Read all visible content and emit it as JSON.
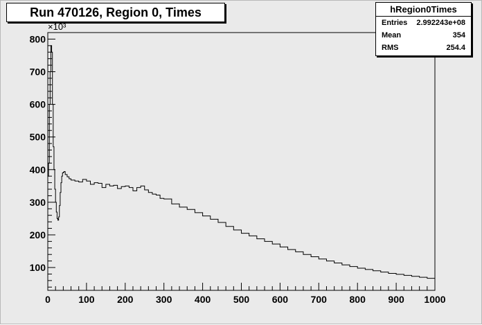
{
  "title": "Run 470126, Region 0, Times",
  "stats": {
    "name": "hRegion0Times",
    "rows": [
      {
        "label": "Entries",
        "value": "2.992243e+08"
      },
      {
        "label": "Mean",
        "value": "354"
      },
      {
        "label": "RMS",
        "value": "254.4"
      }
    ]
  },
  "chart_data": {
    "type": "line",
    "title": "Run 470126, Region 0, Times",
    "y_multiplier_label": "×10³",
    "xlim": [
      0,
      1000
    ],
    "ylim": [
      30,
      820
    ],
    "x_ticks": [
      0,
      100,
      200,
      300,
      400,
      500,
      600,
      700,
      800,
      900,
      1000
    ],
    "y_ticks": [
      100,
      200,
      300,
      400,
      500,
      600,
      700,
      800
    ],
    "series": [
      {
        "x": [
          0,
          2,
          4,
          6,
          8,
          10,
          12,
          14,
          16,
          18,
          20,
          22,
          24,
          26,
          28,
          30,
          32,
          34,
          36,
          38,
          40,
          42,
          45,
          50,
          55,
          60,
          70,
          80,
          90,
          100,
          110,
          120,
          130,
          140,
          150,
          160,
          170,
          180,
          190,
          200,
          210,
          220,
          230,
          240,
          250,
          260,
          270,
          280,
          290,
          300,
          320,
          340,
          360,
          380,
          400,
          420,
          440,
          460,
          480,
          500,
          520,
          540,
          560,
          580,
          600,
          620,
          640,
          660,
          680,
          700,
          720,
          740,
          760,
          780,
          800,
          820,
          840,
          860,
          880,
          900,
          920,
          940,
          960,
          980,
          1000
        ],
        "y": [
          380,
          420,
          600,
          700,
          780,
          760,
          600,
          470,
          400,
          340,
          300,
          270,
          250,
          245,
          255,
          290,
          330,
          360,
          380,
          390,
          392,
          394,
          385,
          378,
          372,
          368,
          365,
          362,
          370,
          365,
          355,
          360,
          358,
          345,
          355,
          350,
          352,
          342,
          348,
          350,
          345,
          335,
          345,
          350,
          338,
          330,
          325,
          322,
          312,
          310,
          295,
          285,
          278,
          268,
          258,
          248,
          238,
          226,
          215,
          205,
          197,
          188,
          180,
          172,
          163,
          155,
          148,
          140,
          133,
          126,
          120,
          114,
          108,
          103,
          98,
          94,
          90,
          86,
          82,
          79,
          76,
          73,
          70,
          67,
          66
        ]
      }
    ]
  }
}
